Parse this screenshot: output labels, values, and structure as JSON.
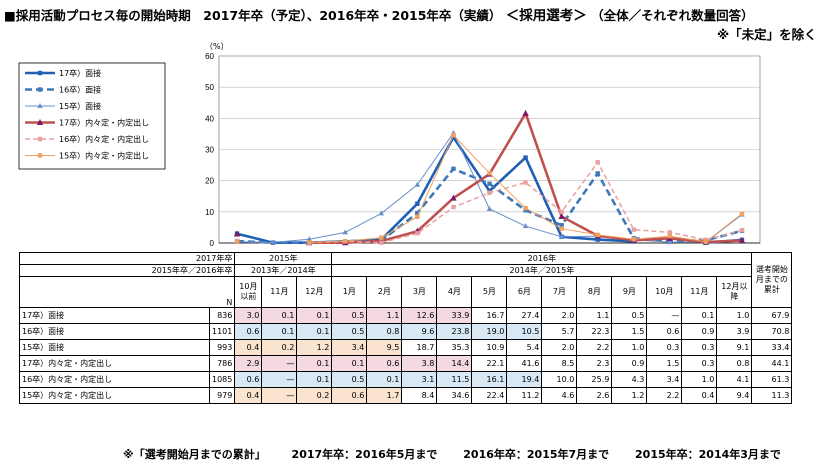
{
  "title": {
    "main": "■採用活動プロセス毎の開始時期　2017年卒（予定）、2016年卒・2015年卒（実績）",
    "emph": "＜採用選考＞",
    "tail": "（全体／それぞれ数量回答）",
    "subtitle": "※「未定」を除く"
  },
  "chart_data": {
    "type": "line",
    "ylabel": "（%）",
    "ylim": [
      0,
      60
    ],
    "yticks": [
      0,
      10,
      20,
      30,
      40,
      50,
      60
    ],
    "x": [
      "10月以前",
      "11月",
      "12月",
      "1月",
      "2月",
      "3月",
      "4月",
      "5月",
      "6月",
      "7月",
      "8月",
      "9月",
      "10月",
      "11月",
      "12月以降"
    ],
    "series": [
      {
        "name": "17卒）面接",
        "color": "#1f5fb4",
        "dash": "",
        "width": 2.6,
        "marker": "square",
        "values": [
          3.0,
          0.1,
          0.1,
          0.5,
          1.1,
          12.6,
          33.9,
          16.7,
          27.4,
          2.0,
          1.1,
          0.5,
          null,
          0.1,
          1.0
        ]
      },
      {
        "name": "16卒）面接",
        "color": "#3f78b8",
        "dash": "7,4",
        "width": 2.6,
        "marker": "square",
        "values": [
          0.6,
          0.1,
          0.1,
          0.5,
          0.8,
          9.6,
          23.8,
          19.0,
          10.5,
          5.7,
          22.3,
          1.5,
          0.6,
          0.9,
          3.9
        ]
      },
      {
        "name": "15卒）面接",
        "color": "#6a8fcb",
        "dash": "",
        "width": 1,
        "marker": "triangle",
        "values": [
          0.4,
          0.2,
          1.2,
          3.4,
          9.5,
          18.7,
          35.3,
          10.9,
          5.4,
          2.0,
          2.2,
          1.0,
          0.3,
          0.3,
          9.1
        ]
      },
      {
        "name": "17卒）内々定・内定出し",
        "color": "#c0504d",
        "dash": "",
        "width": 2.6,
        "marker": "triangle-purple",
        "values": [
          2.9,
          null,
          0.1,
          0.1,
          0.6,
          3.8,
          14.4,
          22.1,
          41.6,
          8.5,
          2.3,
          0.9,
          1.5,
          0.3,
          0.8
        ]
      },
      {
        "name": "16卒）内々定・内定出し",
        "color": "#e8a0a0",
        "dash": "5,3",
        "width": 1.5,
        "marker": "square",
        "values": [
          0.6,
          null,
          0.1,
          0.5,
          0.1,
          3.1,
          11.5,
          16.1,
          19.4,
          10.0,
          25.9,
          4.3,
          3.4,
          1.0,
          4.1
        ]
      },
      {
        "name": "15卒）内々定・内定出し",
        "color": "#f0a060",
        "dash": "",
        "width": 1,
        "marker": "square",
        "values": [
          0.4,
          null,
          0.2,
          0.6,
          1.7,
          8.4,
          34.6,
          22.4,
          11.2,
          4.6,
          2.6,
          1.2,
          2.2,
          0.4,
          9.4
        ]
      }
    ]
  },
  "table": {
    "corner_row1": "2017年卒",
    "corner_row2": "2015年卒／2016年卒",
    "group1_row1": "2015年",
    "group1_row2": "2013年／2014年",
    "group2_row1": "2016年",
    "group2_row2": "2014年／2015年",
    "n_label": "N",
    "total_header": "選考開始月までの累計",
    "months": [
      "10月以前",
      "11月",
      "12月",
      "1月",
      "2月",
      "3月",
      "4月",
      "5月",
      "6月",
      "7月",
      "8月",
      "9月",
      "10月",
      "11月",
      "12月以降"
    ],
    "rows": [
      {
        "label": "17卒）面接",
        "n": "836",
        "cells": [
          "3.0",
          "0.1",
          "0.1",
          "0.5",
          "1.1",
          "12.6",
          "33.9",
          "16.7",
          "27.4",
          "2.0",
          "1.1",
          "0.5",
          "—",
          "0.1",
          "1.0"
        ],
        "total": "67.9",
        "shade": "pink",
        "shade_upto": 7
      },
      {
        "label": "16卒）面接",
        "n": "1101",
        "cells": [
          "0.6",
          "0.1",
          "0.1",
          "0.5",
          "0.8",
          "9.6",
          "23.8",
          "19.0",
          "10.5",
          "5.7",
          "22.3",
          "1.5",
          "0.6",
          "0.9",
          "3.9"
        ],
        "total": "70.8",
        "shade": "blue",
        "shade_upto": 9
      },
      {
        "label": "15卒）面接",
        "n": "993",
        "cells": [
          "0.4",
          "0.2",
          "1.2",
          "3.4",
          "9.5",
          "18.7",
          "35.3",
          "10.9",
          "5.4",
          "2.0",
          "2.2",
          "1.0",
          "0.3",
          "0.3",
          "9.1"
        ],
        "total": "33.4",
        "shade": "orange",
        "shade_upto": 5
      },
      {
        "label": "17卒）内々定・内定出し",
        "n": "786",
        "cells": [
          "2.9",
          "—",
          "0.1",
          "0.1",
          "0.6",
          "3.8",
          "14.4",
          "22.1",
          "41.6",
          "8.5",
          "2.3",
          "0.9",
          "1.5",
          "0.3",
          "0.8"
        ],
        "total": "44.1",
        "shade": "pink",
        "shade_upto": 7
      },
      {
        "label": "16卒）内々定・内定出し",
        "n": "1085",
        "cells": [
          "0.6",
          "—",
          "0.1",
          "0.5",
          "0.1",
          "3.1",
          "11.5",
          "16.1",
          "19.4",
          "10.0",
          "25.9",
          "4.3",
          "3.4",
          "1.0",
          "4.1"
        ],
        "total": "61.3",
        "shade": "blue",
        "shade_upto": 9
      },
      {
        "label": "15卒）内々定・内定出し",
        "n": "979",
        "cells": [
          "0.4",
          "—",
          "0.2",
          "0.6",
          "1.7",
          "8.4",
          "34.6",
          "22.4",
          "11.2",
          "4.6",
          "2.6",
          "1.2",
          "2.2",
          "0.4",
          "9.4"
        ],
        "total": "11.3",
        "shade": "orange",
        "shade_upto": 5
      }
    ]
  },
  "footnote": {
    "part1": "※「選考開始月までの累計」",
    "part2": "2017年卒：2016年5月まで",
    "part3": "2016年卒：2015年7月まで",
    "part4": "2015年卒：2014年3月まで"
  }
}
